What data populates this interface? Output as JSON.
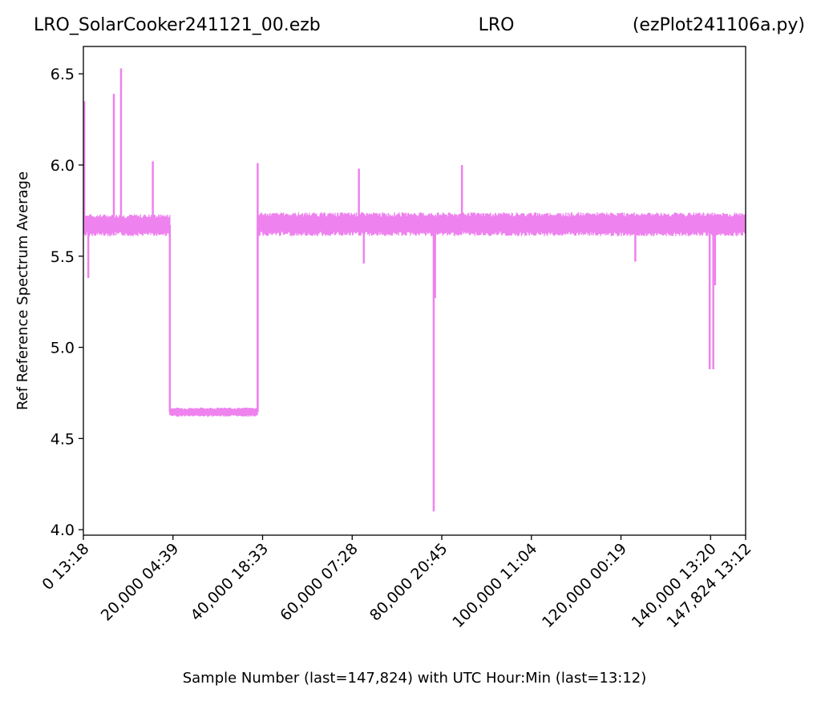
{
  "chart_data": {
    "type": "line",
    "title_left": "LRO_SolarCooker241121_00.ezb",
    "title_center": "LRO",
    "title_right": "(ezPlot241106a.py)",
    "xlabel": "Sample Number (last=147,824) with UTC Hour:Min (last=13:12)",
    "ylabel": "Ref Reference Spectrum Average",
    "xlim": [
      0,
      147824
    ],
    "ylim": [
      3.97,
      6.65
    ],
    "yticks": [
      {
        "value": 4.0,
        "label": "4.0"
      },
      {
        "value": 4.5,
        "label": "4.5"
      },
      {
        "value": 5.0,
        "label": "5.0"
      },
      {
        "value": 5.5,
        "label": "5.5"
      },
      {
        "value": 6.0,
        "label": "6.0"
      },
      {
        "value": 6.5,
        "label": "6.5"
      }
    ],
    "xticks": [
      {
        "value": 0,
        "label": "0  13:18"
      },
      {
        "value": 20000,
        "label": "20,000  04:39"
      },
      {
        "value": 40000,
        "label": "40,000  18:33"
      },
      {
        "value": 60000,
        "label": "60,000  07:28"
      },
      {
        "value": 80000,
        "label": "80,000  20:45"
      },
      {
        "value": 100000,
        "label": "100,000  11:04"
      },
      {
        "value": 120000,
        "label": "120,000  00:19"
      },
      {
        "value": 140000,
        "label": "140,000  13:20"
      },
      {
        "value": 147824,
        "label": "147,824  13:12"
      }
    ],
    "grid": false,
    "series": [
      {
        "color": "#ee82ee",
        "band_segments": [
          {
            "x0": 0,
            "x1": 19300,
            "low": 5.61,
            "high": 5.73
          },
          {
            "x0": 19300,
            "x1": 38900,
            "low": 4.62,
            "high": 4.67
          },
          {
            "x0": 38900,
            "x1": 147824,
            "low": 5.61,
            "high": 5.74
          }
        ],
        "spikes": [
          {
            "x": 200,
            "y": 6.35
          },
          {
            "x": 1100,
            "y": 5.38
          },
          {
            "x": 6800,
            "y": 6.39
          },
          {
            "x": 8400,
            "y": 6.53
          },
          {
            "x": 15500,
            "y": 6.02
          },
          {
            "x": 38900,
            "y": 6.01
          },
          {
            "x": 61500,
            "y": 5.98
          },
          {
            "x": 62600,
            "y": 5.46
          },
          {
            "x": 78200,
            "y": 4.1
          },
          {
            "x": 78500,
            "y": 5.27
          },
          {
            "x": 84500,
            "y": 6.0
          },
          {
            "x": 123200,
            "y": 5.47
          },
          {
            "x": 139800,
            "y": 4.88
          },
          {
            "x": 140600,
            "y": 4.88
          },
          {
            "x": 141000,
            "y": 5.34
          }
        ]
      }
    ]
  }
}
